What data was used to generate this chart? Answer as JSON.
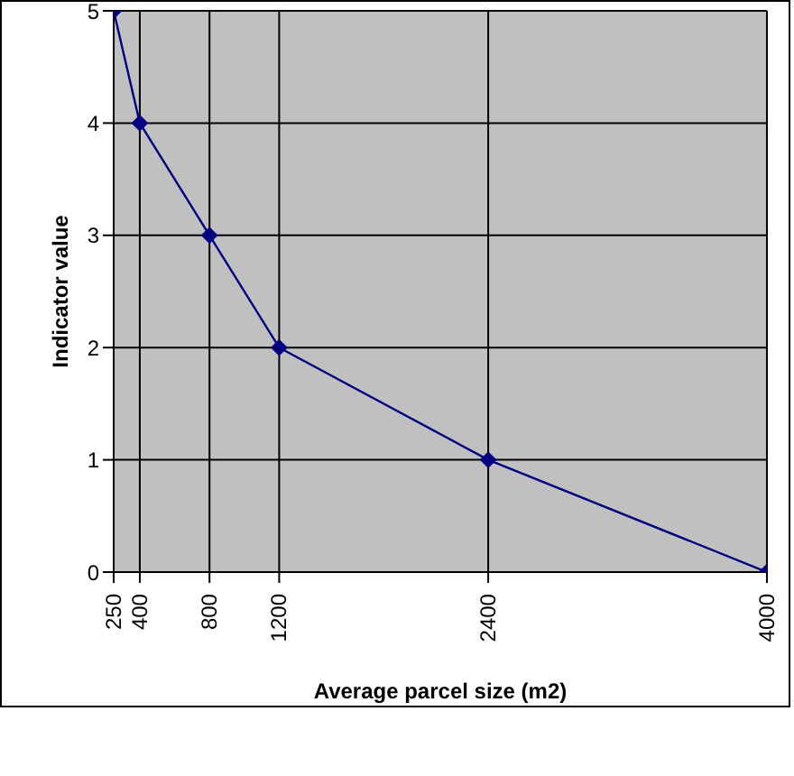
{
  "chart_data": {
    "type": "line",
    "xlabel": "Average parcel size (m2)",
    "ylabel": "Indicator value",
    "x": [
      250,
      400,
      800,
      1200,
      2400,
      4000
    ],
    "series": [
      {
        "color": "#000080",
        "values": [
          5,
          4,
          3,
          2,
          1,
          0
        ]
      }
    ],
    "xlim": [
      250,
      4000
    ],
    "xticks": [
      250,
      400,
      800,
      1200,
      2400,
      4000
    ],
    "ylim": [
      0,
      5
    ],
    "yticks": [
      0,
      1,
      2,
      3,
      4,
      5
    ],
    "grid": true,
    "marker": "diamond",
    "line_style": "solid",
    "legend": false
  }
}
